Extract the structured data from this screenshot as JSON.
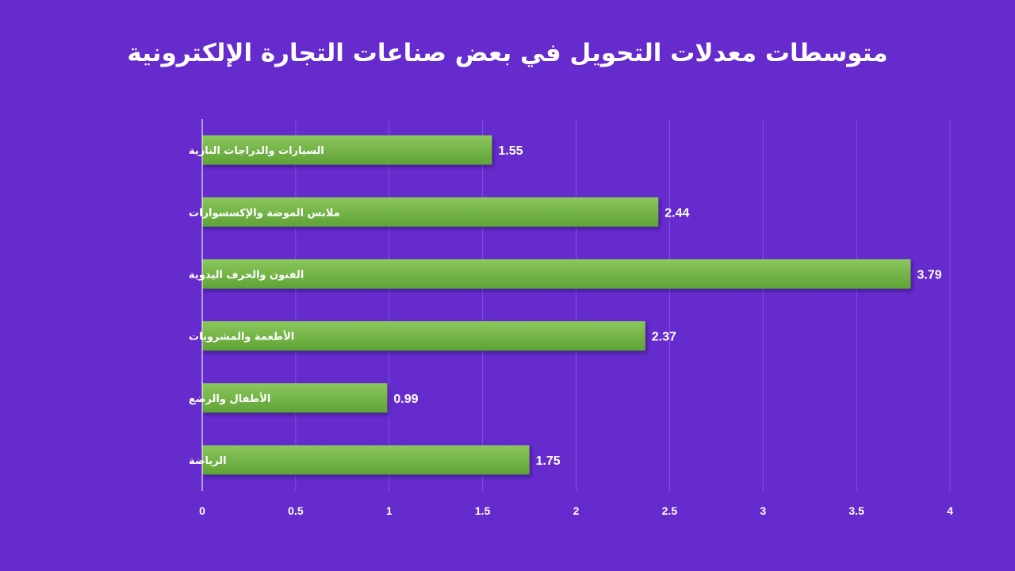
{
  "chart_data": {
    "type": "bar",
    "orientation": "horizontal",
    "title": "متوسطات معدلات التحويل في بعض صناعات التجارة الإلكترونية",
    "categories": [
      "السيارات والدراجات النارية",
      "ملابس الموضة والإكسسوارات",
      "الفنون والحرف اليدوية",
      "الأطعمة والمشروبات",
      "الأطفال والرضع",
      "الرياضة"
    ],
    "values": [
      1.55,
      2.44,
      3.79,
      2.37,
      0.99,
      1.75
    ],
    "data_labels": [
      "1.55",
      "2.44",
      "3.79",
      "2.37",
      "0.99",
      "1.75"
    ],
    "xlim": [
      0,
      4
    ],
    "x_ticks": [
      "0",
      "0.5",
      "1",
      "1.5",
      "2",
      "2.5",
      "3",
      "3.5",
      "4"
    ],
    "xlabel": "",
    "ylabel": "",
    "grid": true,
    "legend": "none",
    "colors": {
      "background": "#652bcd",
      "bar_top": "#8bc75c",
      "bar_bottom": "#5fa236",
      "gridline": "#8155d6",
      "axis": "#ffffff",
      "text": "#ffffff"
    }
  }
}
